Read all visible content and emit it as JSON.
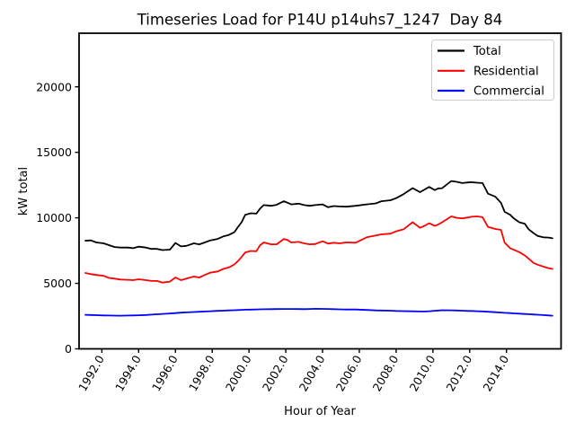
{
  "figure": {
    "background": "#ffffff",
    "spine_color": "#000000"
  },
  "chart_data": {
    "type": "line",
    "title": "Timeseries Load for P14U p14uhs7_1247  Day 84",
    "xlabel": "Hour of Year",
    "ylabel": "kW total",
    "grid": false,
    "plot_bg": "#ffffff",
    "xlim": [
      1990.76,
      2016.97
    ],
    "ylim": [
      0,
      24090
    ],
    "x_tick_values": [
      1992,
      1994,
      1996,
      1998,
      2000,
      2002,
      2004,
      2006,
      2008,
      2010,
      2012,
      2014
    ],
    "x_tick_labels": [
      "1992.0",
      "1994.0",
      "1996.0",
      "1998.0",
      "2000.0",
      "2002.0",
      "2004.0",
      "2006.0",
      "2008.0",
      "2010.0",
      "2012.0",
      "2014.0"
    ],
    "x_tick_rotation_deg": 60,
    "y_tick_values": [
      0,
      5000,
      10000,
      15000,
      20000
    ],
    "y_tick_labels": [
      "0",
      "5000",
      "10000",
      "15000",
      "20000"
    ],
    "legend": {
      "position": "upper right",
      "border_color": "#cccccc",
      "fill": "#ffffff",
      "entries": [
        "Total",
        "Residential",
        "Commercial"
      ]
    },
    "x": [
      1991.1,
      1991.4,
      1991.7,
      1992.1,
      1992.4,
      1992.7,
      1993.0,
      1993.4,
      1993.7,
      1994.0,
      1994.4,
      1994.7,
      1995.0,
      1995.3,
      1995.7,
      1996.0,
      1996.3,
      1996.6,
      1997.0,
      1997.3,
      1997.6,
      1997.9,
      1998.3,
      1998.6,
      1998.9,
      1999.2,
      1999.4,
      1999.6,
      1999.8,
      2000.1,
      2000.4,
      2000.6,
      2000.8,
      2001.2,
      2001.5,
      2001.9,
      2002.1,
      2002.3,
      2002.7,
      2003.0,
      2003.3,
      2003.6,
      2004.0,
      2004.3,
      2004.6,
      2004.9,
      2005.3,
      2005.8,
      2006.4,
      2006.9,
      2007.2,
      2007.7,
      2008.0,
      2008.4,
      2008.9,
      2009.3,
      2009.6,
      2009.8,
      2010.1,
      2010.3,
      2010.5,
      2011.0,
      2011.3,
      2011.6,
      2011.9,
      2012.1,
      2012.4,
      2012.7,
      2013.0,
      2013.4,
      2013.7,
      2013.9,
      2014.2,
      2014.4,
      2014.7,
      2015.0,
      2015.2,
      2015.5,
      2015.7,
      2016.0,
      2016.3,
      2016.5
    ],
    "series": [
      {
        "name": "Total",
        "color": "#000000",
        "values": [
          8250,
          8280,
          8120,
          8050,
          7910,
          7770,
          7730,
          7730,
          7680,
          7800,
          7730,
          7630,
          7630,
          7540,
          7570,
          8080,
          7820,
          7860,
          8050,
          7980,
          8120,
          8280,
          8390,
          8580,
          8690,
          8900,
          9300,
          9660,
          10230,
          10350,
          10320,
          10700,
          10970,
          10920,
          10990,
          11270,
          11150,
          11030,
          11080,
          10970,
          10920,
          10970,
          11030,
          10810,
          10900,
          10870,
          10850,
          10920,
          11030,
          11100,
          11270,
          11340,
          11500,
          11800,
          12270,
          11960,
          12200,
          12360,
          12120,
          12250,
          12260,
          12810,
          12750,
          12650,
          12700,
          12720,
          12680,
          12650,
          11840,
          11610,
          11150,
          10460,
          10230,
          9960,
          9660,
          9550,
          9130,
          8810,
          8620,
          8510,
          8490,
          8440
        ]
      },
      {
        "name": "Residential",
        "color": "#ff0000",
        "values": [
          5790,
          5700,
          5640,
          5570,
          5410,
          5360,
          5290,
          5270,
          5240,
          5310,
          5240,
          5180,
          5180,
          5060,
          5130,
          5450,
          5240,
          5360,
          5520,
          5450,
          5640,
          5820,
          5910,
          6100,
          6210,
          6440,
          6700,
          7010,
          7360,
          7470,
          7450,
          7900,
          8120,
          7980,
          7980,
          8390,
          8300,
          8120,
          8160,
          8050,
          7980,
          8000,
          8210,
          8030,
          8100,
          8050,
          8120,
          8100,
          8510,
          8650,
          8740,
          8790,
          8970,
          9120,
          9660,
          9240,
          9430,
          9590,
          9380,
          9500,
          9660,
          10110,
          10000,
          9960,
          10030,
          10080,
          10110,
          10050,
          9300,
          9150,
          9080,
          8100,
          7680,
          7560,
          7380,
          7130,
          6880,
          6530,
          6420,
          6280,
          6150,
          6100
        ]
      },
      {
        "name": "Commercial",
        "color": "#0000ff",
        "values": [
          2600,
          2585,
          2570,
          2550,
          2540,
          2535,
          2530,
          2540,
          2550,
          2565,
          2585,
          2610,
          2640,
          2665,
          2700,
          2730,
          2760,
          2785,
          2810,
          2830,
          2850,
          2875,
          2900,
          2915,
          2935,
          2950,
          2960,
          2975,
          2985,
          2995,
          3010,
          3015,
          3020,
          3030,
          3035,
          3040,
          3040,
          3040,
          3035,
          3030,
          3045,
          3055,
          3050,
          3040,
          3030,
          3015,
          3005,
          3000,
          2970,
          2935,
          2925,
          2910,
          2895,
          2880,
          2865,
          2850,
          2855,
          2870,
          2905,
          2925,
          2950,
          2940,
          2925,
          2910,
          2895,
          2890,
          2875,
          2855,
          2830,
          2795,
          2770,
          2750,
          2725,
          2710,
          2685,
          2660,
          2645,
          2620,
          2605,
          2580,
          2550,
          2530
        ]
      }
    ]
  }
}
